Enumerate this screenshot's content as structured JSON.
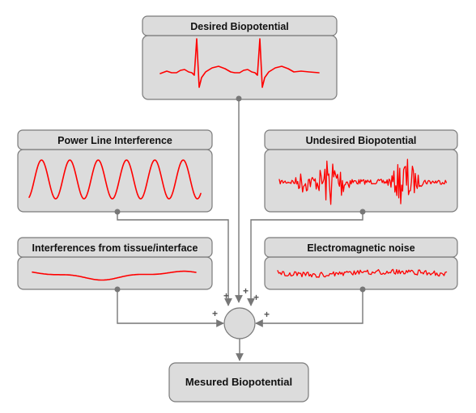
{
  "colors": {
    "panel_fill": "#dcdcdc",
    "panel_stroke": "#7a7a7a",
    "signal": "#ff0000",
    "wire": "#777777"
  },
  "panels": {
    "desired": {
      "title": "Desired Biopotential"
    },
    "powerline": {
      "title": "Power Line Interference"
    },
    "undesired": {
      "title": "Undesired Biopotential"
    },
    "tissue": {
      "title": "Interferences from tissue/interface"
    },
    "em": {
      "title": "Electromagnetic noise"
    }
  },
  "summer": {
    "plus_sign": "+"
  },
  "output": {
    "title": "Mesured Biopotential"
  }
}
